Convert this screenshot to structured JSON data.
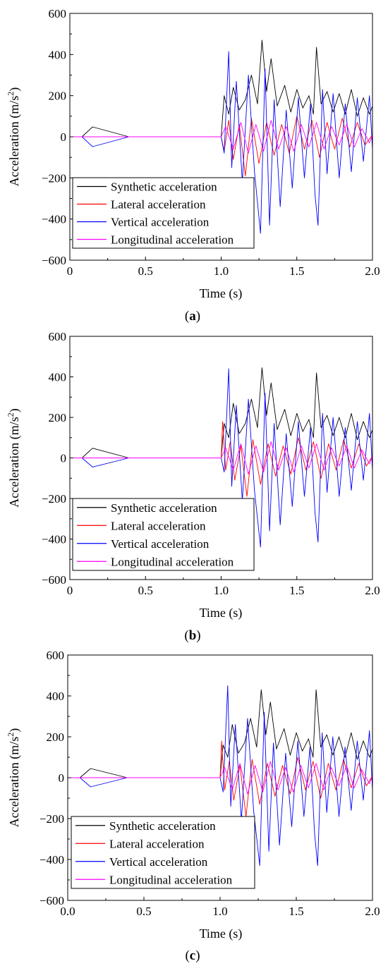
{
  "chart_data": [
    {
      "type": "line",
      "panel_label": "a",
      "xlabel": "Time (s)",
      "ylabel_main": "Acceleration (m/s",
      "ylabel_sup": "2",
      "ylabel_close": ")",
      "xlim": [
        0,
        2.0
      ],
      "ylim": [
        -600,
        600
      ],
      "xticks": [
        0,
        0.5,
        1.0,
        1.5,
        2.0
      ],
      "xtick_labels": [
        "0",
        "0.5",
        "1.0",
        "1.5",
        "2.0"
      ],
      "yticks": [
        -600,
        -400,
        -200,
        0,
        200,
        400,
        600
      ],
      "ytick_labels": [
        "−600",
        "−400",
        "−200",
        "0",
        "200",
        "400",
        "600"
      ],
      "legend_position": "bottom-left",
      "series": [
        {
          "name": "Synthetic acceleration",
          "color": "#000000",
          "x": [
            0.0,
            0.08,
            0.15,
            0.39,
            1.0,
            1.02,
            1.05,
            1.08,
            1.12,
            1.16,
            1.2,
            1.24,
            1.27,
            1.3,
            1.33,
            1.37,
            1.42,
            1.46,
            1.5,
            1.54,
            1.58,
            1.61,
            1.63,
            1.66,
            1.7,
            1.74,
            1.78,
            1.82,
            1.86,
            1.9,
            1.94,
            1.98,
            2.0
          ],
          "y": [
            0,
            0,
            48,
            0,
            0,
            200,
            110,
            240,
            130,
            180,
            300,
            160,
            470,
            220,
            380,
            150,
            250,
            120,
            230,
            140,
            200,
            110,
            435,
            160,
            220,
            120,
            210,
            110,
            230,
            100,
            190,
            110,
            150
          ]
        },
        {
          "name": "Lateral acceleration",
          "color": "#ff0000",
          "x": [
            0.0,
            1.0,
            1.02,
            1.05,
            1.08,
            1.12,
            1.16,
            1.2,
            1.25,
            1.3,
            1.35,
            1.4,
            1.45,
            1.5,
            1.55,
            1.6,
            1.65,
            1.7,
            1.75,
            1.8,
            1.85,
            1.9,
            1.95,
            2.0
          ],
          "y": [
            0,
            0,
            -70,
            80,
            -110,
            60,
            -190,
            90,
            -130,
            70,
            -90,
            60,
            -80,
            100,
            -60,
            80,
            -100,
            70,
            -60,
            90,
            -50,
            70,
            -40,
            10
          ]
        },
        {
          "name": "Vertical acceleration",
          "color": "#0000ff",
          "x": [
            0.0,
            0.08,
            0.15,
            0.39,
            1.0,
            1.02,
            1.05,
            1.07,
            1.1,
            1.14,
            1.18,
            1.22,
            1.26,
            1.29,
            1.32,
            1.35,
            1.39,
            1.43,
            1.47,
            1.51,
            1.55,
            1.59,
            1.62,
            1.64,
            1.67,
            1.7,
            1.74,
            1.78,
            1.82,
            1.86,
            1.9,
            1.94,
            1.98,
            2.0
          ],
          "y": [
            0,
            0,
            -48,
            0,
            0,
            -80,
            415,
            -150,
            270,
            -220,
            300,
            -170,
            -470,
            330,
            -430,
            180,
            -340,
            130,
            -250,
            190,
            -200,
            160,
            -280,
            -430,
            230,
            -180,
            210,
            -200,
            160,
            -170,
            190,
            -120,
            200,
            -60
          ]
        },
        {
          "name": "Longitudinal acceleration",
          "color": "#ff00ff",
          "x": [
            0.0,
            1.0,
            1.03,
            1.08,
            1.13,
            1.18,
            1.23,
            1.28,
            1.33,
            1.38,
            1.43,
            1.48,
            1.53,
            1.58,
            1.63,
            1.68,
            1.73,
            1.78,
            1.83,
            1.88,
            1.93,
            1.98,
            2.0
          ],
          "y": [
            0,
            0,
            50,
            -60,
            70,
            -80,
            60,
            -70,
            80,
            -60,
            50,
            -70,
            60,
            -50,
            70,
            -60,
            50,
            -40,
            60,
            -50,
            40,
            -30,
            10
          ]
        }
      ]
    },
    {
      "type": "line",
      "panel_label": "b",
      "xlabel": "Time (s)",
      "ylabel_main": "Acceleration (m/s",
      "ylabel_sup": "2",
      "ylabel_close": ")",
      "xlim": [
        0,
        2.0
      ],
      "ylim": [
        -600,
        600
      ],
      "xticks": [
        0,
        0.5,
        1.0,
        1.5,
        2.0
      ],
      "xtick_labels": [
        "0",
        "0.5",
        "1.0",
        "1.5",
        "2.0"
      ],
      "yticks": [
        -600,
        -400,
        -200,
        0,
        200,
        400,
        600
      ],
      "ytick_labels": [
        "−600",
        "−400",
        "−200",
        "0",
        "200",
        "400",
        "600"
      ],
      "legend_position": "bottom-left",
      "series": [
        {
          "name": "Synthetic acceleration",
          "color": "#000000",
          "x": [
            0.0,
            0.08,
            0.15,
            0.39,
            1.0,
            1.02,
            1.05,
            1.08,
            1.12,
            1.16,
            1.2,
            1.24,
            1.27,
            1.3,
            1.33,
            1.37,
            1.42,
            1.46,
            1.5,
            1.54,
            1.58,
            1.61,
            1.63,
            1.66,
            1.7,
            1.74,
            1.78,
            1.82,
            1.86,
            1.9,
            1.94,
            1.98,
            2.0
          ],
          "y": [
            0,
            0,
            48,
            0,
            0,
            170,
            100,
            270,
            120,
            170,
            290,
            150,
            445,
            210,
            370,
            140,
            240,
            110,
            220,
            130,
            190,
            100,
            420,
            150,
            210,
            110,
            200,
            100,
            220,
            90,
            180,
            100,
            140
          ]
        },
        {
          "name": "Lateral acceleration",
          "color": "#ff0000",
          "x": [
            0.0,
            1.0,
            1.01,
            1.03,
            1.06,
            1.09,
            1.13,
            1.17,
            1.21,
            1.26,
            1.31,
            1.36,
            1.41,
            1.46,
            1.51,
            1.56,
            1.61,
            1.66,
            1.71,
            1.76,
            1.81,
            1.86,
            1.91,
            1.96,
            2.0
          ],
          "y": [
            0,
            0,
            180,
            -60,
            80,
            -110,
            60,
            -190,
            90,
            -130,
            70,
            -90,
            60,
            -80,
            100,
            -60,
            80,
            -100,
            70,
            -60,
            90,
            -50,
            70,
            -40,
            10
          ]
        },
        {
          "name": "Vertical acceleration",
          "color": "#0000ff",
          "x": [
            0.0,
            0.08,
            0.15,
            0.39,
            1.0,
            1.02,
            1.05,
            1.07,
            1.1,
            1.14,
            1.18,
            1.22,
            1.26,
            1.29,
            1.32,
            1.35,
            1.39,
            1.43,
            1.47,
            1.51,
            1.55,
            1.59,
            1.62,
            1.64,
            1.67,
            1.7,
            1.74,
            1.78,
            1.82,
            1.86,
            1.9,
            1.94,
            1.98,
            2.0
          ],
          "y": [
            0,
            0,
            -45,
            0,
            0,
            -70,
            440,
            -140,
            260,
            -210,
            290,
            -160,
            -440,
            320,
            -360,
            170,
            -330,
            120,
            -240,
            180,
            -190,
            150,
            -270,
            -415,
            220,
            -170,
            200,
            -190,
            150,
            -160,
            180,
            -110,
            220,
            -60
          ]
        },
        {
          "name": "Longitudinal acceleration",
          "color": "#ff00ff",
          "x": [
            0.0,
            1.0,
            1.03,
            1.08,
            1.13,
            1.18,
            1.23,
            1.28,
            1.33,
            1.38,
            1.43,
            1.48,
            1.53,
            1.58,
            1.63,
            1.68,
            1.73,
            1.78,
            1.83,
            1.88,
            1.93,
            1.98,
            2.0
          ],
          "y": [
            0,
            0,
            50,
            -60,
            70,
            -80,
            60,
            -70,
            80,
            -60,
            50,
            -70,
            60,
            -50,
            70,
            -60,
            50,
            -40,
            60,
            -50,
            40,
            -30,
            10
          ]
        }
      ]
    },
    {
      "type": "line",
      "panel_label": "c",
      "xlabel": "Time (s)",
      "ylabel_main": "Acceleration (m/s",
      "ylabel_sup": "2",
      "ylabel_close": ")",
      "xlim": [
        0,
        2.0
      ],
      "ylim": [
        -600,
        600
      ],
      "xticks": [
        0,
        0.5,
        1.0,
        1.5,
        2.0
      ],
      "xtick_labels": [
        "0.0",
        "0.5",
        "1.0",
        "1.5",
        "2.0"
      ],
      "yticks": [
        -600,
        -400,
        -200,
        0,
        200,
        400,
        600
      ],
      "ytick_labels": [
        "−600",
        "−400",
        "−200",
        "0",
        "200",
        "400",
        "600"
      ],
      "legend_position": "bottom-left",
      "series": [
        {
          "name": "Synthetic acceleration",
          "color": "#000000",
          "x": [
            0.0,
            0.08,
            0.15,
            0.39,
            1.0,
            1.02,
            1.05,
            1.08,
            1.12,
            1.16,
            1.2,
            1.24,
            1.27,
            1.3,
            1.33,
            1.37,
            1.42,
            1.46,
            1.5,
            1.54,
            1.58,
            1.61,
            1.63,
            1.66,
            1.7,
            1.74,
            1.78,
            1.82,
            1.86,
            1.9,
            1.94,
            1.98,
            2.0
          ],
          "y": [
            0,
            0,
            45,
            0,
            0,
            160,
            100,
            260,
            120,
            170,
            290,
            150,
            430,
            210,
            370,
            140,
            240,
            110,
            220,
            130,
            190,
            100,
            430,
            150,
            210,
            110,
            200,
            100,
            220,
            90,
            180,
            100,
            140
          ]
        },
        {
          "name": "Lateral acceleration",
          "color": "#ff0000",
          "x": [
            0.0,
            1.0,
            1.01,
            1.03,
            1.06,
            1.09,
            1.13,
            1.17,
            1.21,
            1.26,
            1.31,
            1.36,
            1.41,
            1.46,
            1.51,
            1.56,
            1.61,
            1.66,
            1.71,
            1.76,
            1.81,
            1.86,
            1.91,
            1.96,
            2.0
          ],
          "y": [
            0,
            0,
            180,
            -60,
            80,
            -110,
            60,
            -190,
            90,
            -130,
            70,
            -90,
            60,
            -80,
            100,
            -60,
            80,
            -100,
            70,
            -60,
            90,
            -50,
            70,
            -40,
            10
          ]
        },
        {
          "name": "Vertical acceleration",
          "color": "#0000ff",
          "x": [
            0.0,
            0.08,
            0.15,
            0.39,
            1.0,
            1.02,
            1.05,
            1.07,
            1.1,
            1.14,
            1.18,
            1.22,
            1.26,
            1.29,
            1.32,
            1.35,
            1.39,
            1.43,
            1.47,
            1.51,
            1.55,
            1.59,
            1.62,
            1.64,
            1.67,
            1.7,
            1.74,
            1.78,
            1.82,
            1.86,
            1.9,
            1.94,
            1.98,
            2.0
          ],
          "y": [
            0,
            0,
            -45,
            0,
            0,
            -70,
            450,
            -140,
            260,
            -210,
            290,
            -160,
            -430,
            320,
            -360,
            170,
            -330,
            120,
            -240,
            180,
            -190,
            150,
            -270,
            -430,
            220,
            -170,
            200,
            -190,
            150,
            -160,
            180,
            -110,
            230,
            -60
          ]
        },
        {
          "name": "Longitudinal acceleration",
          "color": "#ff00ff",
          "x": [
            0.0,
            1.0,
            1.03,
            1.08,
            1.13,
            1.18,
            1.23,
            1.28,
            1.33,
            1.38,
            1.43,
            1.48,
            1.53,
            1.58,
            1.63,
            1.68,
            1.73,
            1.78,
            1.83,
            1.88,
            1.93,
            1.98,
            2.0
          ],
          "y": [
            0,
            0,
            50,
            -60,
            70,
            -80,
            60,
            -70,
            80,
            -60,
            50,
            -70,
            60,
            -50,
            70,
            -60,
            50,
            -40,
            60,
            -50,
            40,
            -30,
            10
          ]
        }
      ]
    }
  ]
}
